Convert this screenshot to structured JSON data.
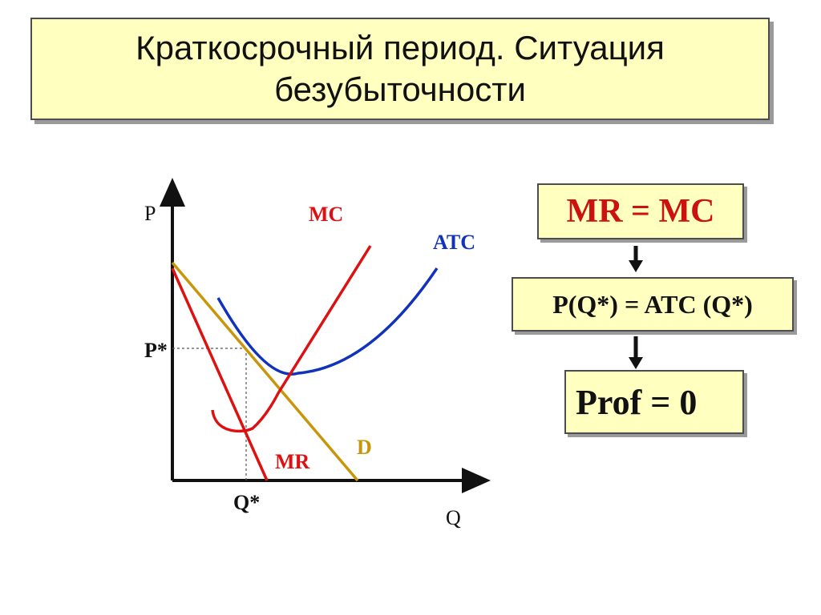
{
  "title": "Краткосрочный период. Ситуация\nбезубыточности",
  "graph": {
    "axis_y_label": "P",
    "axis_x_label": "Q",
    "p_star_label": "P*",
    "q_star_label": "Q*",
    "curves": [
      {
        "name": "MC",
        "label": "MC",
        "color": "#dd1111"
      },
      {
        "name": "ATC",
        "label": "ATC",
        "color": "#1133bb"
      },
      {
        "name": "MR",
        "label": "MR",
        "color": "#dd1111"
      },
      {
        "name": "D",
        "label": "D",
        "color": "#c8960a"
      }
    ]
  },
  "flow": {
    "step1": "MR = MC",
    "step2": "P(Q*) = ATC (Q*)",
    "step3": "Prof = 0"
  },
  "colors": {
    "box_fill": "#ffffc0",
    "mc": "#dd1111",
    "atc": "#1133bb",
    "mr": "#dd1111",
    "demand": "#c8960a",
    "axes": "#111111"
  }
}
